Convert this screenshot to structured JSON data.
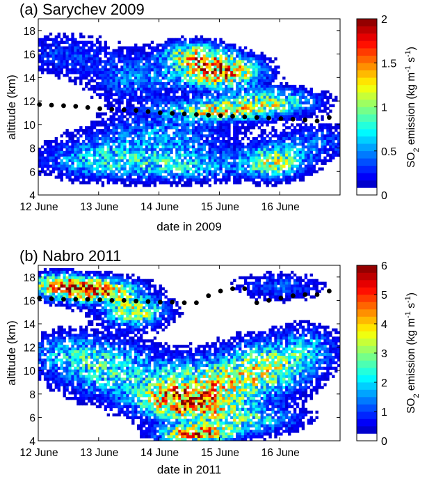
{
  "chart_data": [
    {
      "type": "heatmap",
      "panel": "(a)",
      "title": "(a) Sarychev 2009",
      "xlabel": "date in 2009",
      "ylabel": "altitude (km)",
      "x_tick_labels": [
        "12 June",
        "13 June",
        "14 June",
        "15 June",
        "16 June"
      ],
      "x_tick_values": [
        0,
        1,
        2,
        3,
        4
      ],
      "xlim": [
        0,
        5
      ],
      "y_ticks": [
        4,
        6,
        8,
        10,
        12,
        14,
        16,
        18
      ],
      "ylim": [
        4,
        19
      ],
      "colorbar": {
        "label_main": "SO",
        "label_sub": "2",
        "label_rest": " emission (kg m",
        "label_exp1": "-1",
        "label_mid": " s",
        "label_exp2": "-1",
        "label_end": ")",
        "ticks": [
          0,
          0.5,
          1,
          1.5,
          2
        ],
        "range": [
          0,
          2
        ]
      },
      "emission_clusters": [
        {
          "x": 3.0,
          "y": 14.5,
          "sx": 0.45,
          "sy": 0.9,
          "amp": 1.75
        },
        {
          "x": 2.6,
          "y": 16.0,
          "sx": 0.35,
          "sy": 0.7,
          "amp": 1.1
        },
        {
          "x": 3.0,
          "y": 11.2,
          "sx": 0.6,
          "sy": 0.6,
          "amp": 1.25
        },
        {
          "x": 3.9,
          "y": 12.0,
          "sx": 0.5,
          "sy": 0.7,
          "amp": 0.9
        },
        {
          "x": 3.9,
          "y": 6.8,
          "sx": 0.35,
          "sy": 0.9,
          "amp": 1.05
        },
        {
          "x": 0.9,
          "y": 7.0,
          "sx": 0.6,
          "sy": 1.0,
          "amp": 0.6
        },
        {
          "x": 2.0,
          "y": 9.0,
          "sx": 0.8,
          "sy": 1.2,
          "amp": 0.55
        },
        {
          "x": 1.6,
          "y": 14.0,
          "sx": 0.5,
          "sy": 1.5,
          "amp": 0.5
        },
        {
          "x": 0.4,
          "y": 16.0,
          "sx": 0.5,
          "sy": 1.2,
          "amp": 0.35
        },
        {
          "x": 4.6,
          "y": 8.5,
          "sx": 0.5,
          "sy": 1.0,
          "amp": 0.45
        },
        {
          "x": 2.3,
          "y": 6.5,
          "sx": 0.8,
          "sy": 0.9,
          "amp": 0.7
        }
      ],
      "plume_top_dots": {
        "x": [
          0.0,
          0.2,
          0.4,
          0.6,
          0.8,
          1.0,
          1.2,
          1.4,
          1.6,
          1.8,
          2.0,
          2.2,
          2.4,
          2.6,
          2.8,
          3.0,
          3.2,
          3.4,
          3.6,
          3.8,
          4.0,
          4.2,
          4.4,
          4.6,
          4.8
        ],
        "y": [
          11.7,
          11.65,
          11.6,
          11.55,
          11.45,
          11.35,
          11.3,
          11.25,
          11.2,
          11.1,
          11.0,
          10.95,
          10.9,
          10.85,
          10.8,
          10.75,
          10.7,
          10.65,
          10.6,
          10.55,
          10.5,
          10.45,
          10.4,
          10.3,
          10.6
        ]
      }
    },
    {
      "type": "heatmap",
      "panel": "(b)",
      "title": "(b) Nabro 2011",
      "xlabel": "date in 2011",
      "ylabel": "altitude (km)",
      "x_tick_labels": [
        "12 June",
        "13 June",
        "14 June",
        "15 June",
        "16 June"
      ],
      "x_tick_values": [
        0,
        1,
        2,
        3,
        4
      ],
      "xlim": [
        0,
        5
      ],
      "y_ticks": [
        4,
        6,
        8,
        10,
        12,
        14,
        16,
        18
      ],
      "ylim": [
        4,
        19
      ],
      "colorbar": {
        "label_main": "SO",
        "label_sub": "2",
        "label_rest": " emission (kg m",
        "label_exp1": "-1",
        "label_mid": " s",
        "label_exp2": "-1",
        "label_end": ")",
        "ticks": [
          0,
          1,
          2,
          3,
          4,
          5,
          6
        ],
        "range": [
          0,
          6
        ]
      },
      "emission_clusters": [
        {
          "x": 0.9,
          "y": 16.8,
          "sx": 0.5,
          "sy": 0.7,
          "amp": 5.0
        },
        {
          "x": 0.3,
          "y": 17.5,
          "sx": 0.4,
          "sy": 0.6,
          "amp": 3.0
        },
        {
          "x": 1.6,
          "y": 15.0,
          "sx": 0.35,
          "sy": 0.8,
          "amp": 3.5
        },
        {
          "x": 2.4,
          "y": 7.3,
          "sx": 0.5,
          "sy": 1.0,
          "amp": 4.6
        },
        {
          "x": 2.6,
          "y": 4.6,
          "sx": 0.4,
          "sy": 0.5,
          "amp": 4.8
        },
        {
          "x": 2.9,
          "y": 9.0,
          "sx": 0.7,
          "sy": 1.4,
          "amp": 3.0
        },
        {
          "x": 1.2,
          "y": 10.0,
          "sx": 0.6,
          "sy": 1.6,
          "amp": 2.2
        },
        {
          "x": 0.5,
          "y": 11.5,
          "sx": 0.5,
          "sy": 1.2,
          "amp": 1.5
        },
        {
          "x": 3.8,
          "y": 10.5,
          "sx": 0.5,
          "sy": 1.5,
          "amp": 2.6
        },
        {
          "x": 4.5,
          "y": 12.0,
          "sx": 0.35,
          "sy": 1.3,
          "amp": 1.4
        },
        {
          "x": 3.4,
          "y": 5.8,
          "sx": 0.6,
          "sy": 0.8,
          "amp": 2.5
        },
        {
          "x": 4.0,
          "y": 17.2,
          "sx": 0.5,
          "sy": 0.8,
          "amp": 1.2
        }
      ],
      "plume_top_dots": {
        "x": [
          0.0,
          0.2,
          0.4,
          0.6,
          0.8,
          1.0,
          1.2,
          1.4,
          1.6,
          1.8,
          2.0,
          2.2,
          2.4,
          2.6,
          2.8,
          3.0,
          3.2,
          3.4,
          3.6,
          3.8,
          4.0,
          4.2,
          4.4,
          4.6,
          4.8
        ],
        "y": [
          16.2,
          16.15,
          16.1,
          16.1,
          16.1,
          16.05,
          16.0,
          16.0,
          15.95,
          15.9,
          15.85,
          15.85,
          15.8,
          15.8,
          16.4,
          16.8,
          17.0,
          17.0,
          15.8,
          16.0,
          16.2,
          16.4,
          16.5,
          16.5,
          16.8
        ]
      }
    }
  ]
}
